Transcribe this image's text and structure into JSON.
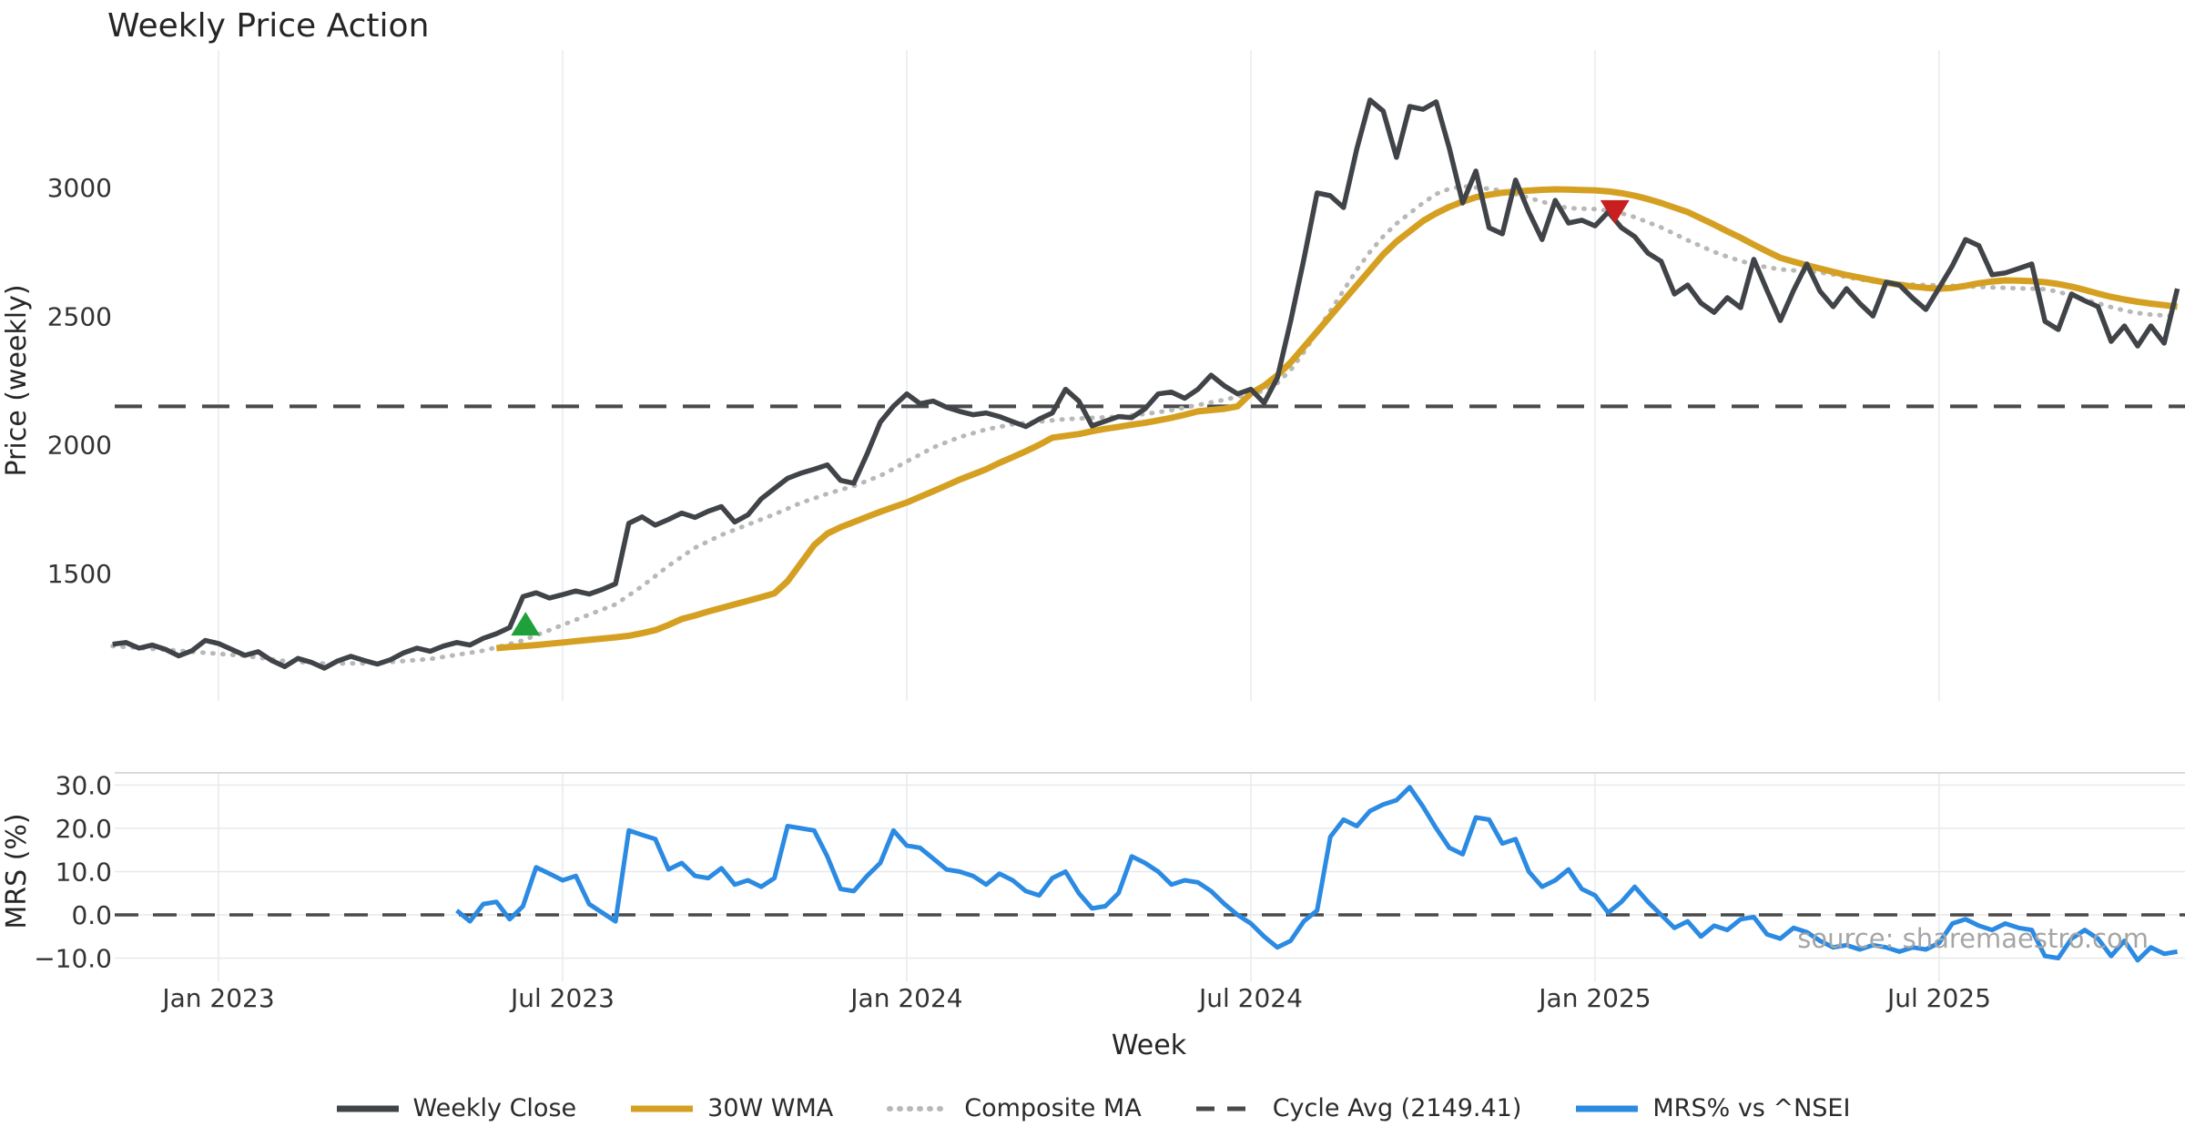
{
  "title": "Weekly Price Action",
  "watermark": "source: sharemaestro.com",
  "colors": {
    "weekly_close": "#404347",
    "wma30": "#d5a021",
    "composite_ma": "#b8b8b8",
    "cycle_avg": "#4a4a4a",
    "mrs": "#2b8ae2",
    "buy_marker": "#1fa03a",
    "sell_marker": "#c81e1e",
    "gridline_v": "#edeff3",
    "gridline_h": "#e9e9e9",
    "spine": "#d9d9d9",
    "tick_text": "#333333"
  },
  "legend": {
    "items": [
      {
        "label": "Weekly Close",
        "color": "#404347",
        "style": "solid"
      },
      {
        "label": "30W WMA",
        "color": "#d5a021",
        "style": "solid"
      },
      {
        "label": "Composite MA",
        "color": "#b8b8b8",
        "style": "dotted"
      },
      {
        "label": "Cycle Avg (2149.41)",
        "color": "#4a4a4a",
        "style": "dashed"
      },
      {
        "label": "MRS% vs ^NSEI",
        "color": "#2b8ae2",
        "style": "solid"
      }
    ]
  },
  "chart_data": [
    {
      "panel": "price",
      "type": "line",
      "title": "Weekly Price Action",
      "ylabel": "Price (weekly)",
      "x_unit": "week_index_from_first_point",
      "ylim": [
        1050,
        3450
      ],
      "grid": "vertical-only",
      "yticks": [
        {
          "v": 3000,
          "label": "3000"
        },
        {
          "v": 2500,
          "label": "2500"
        },
        {
          "v": 2000,
          "label": "2000"
        },
        {
          "v": 1500,
          "label": "1500"
        }
      ],
      "xticks": [
        {
          "week": 8,
          "label": "Jan 2023"
        },
        {
          "week": 34,
          "label": "Jul 2023"
        },
        {
          "week": 60,
          "label": "Jan 2024"
        },
        {
          "week": 86,
          "label": "Jul 2024"
        },
        {
          "week": 112,
          "label": "Jan 2025"
        },
        {
          "week": 138,
          "label": "Jul 2025"
        }
      ],
      "cycle_avg_value": 2149.41,
      "series": [
        {
          "name": "Weekly Close",
          "style": "solid",
          "start_week": 0,
          "values": [
            1225,
            1232,
            1210,
            1222,
            1205,
            1180,
            1200,
            1240,
            1228,
            1205,
            1182,
            1196,
            1162,
            1138,
            1170,
            1155,
            1132,
            1160,
            1178,
            1162,
            1148,
            1165,
            1192,
            1210,
            1198,
            1218,
            1232,
            1222,
            1248,
            1266,
            1290,
            1410,
            1425,
            1405,
            1418,
            1432,
            1420,
            1438,
            1460,
            1695,
            1720,
            1688,
            1710,
            1735,
            1718,
            1742,
            1760,
            1700,
            1728,
            1790,
            1830,
            1870,
            1890,
            1905,
            1922,
            1862,
            1851,
            1964,
            2088,
            2150,
            2198,
            2160,
            2170,
            2146,
            2130,
            2117,
            2124,
            2110,
            2090,
            2071,
            2100,
            2124,
            2216,
            2170,
            2074,
            2092,
            2110,
            2106,
            2140,
            2198,
            2205,
            2181,
            2216,
            2271,
            2229,
            2198,
            2216,
            2163,
            2260,
            2480,
            2720,
            2979,
            2968,
            2922,
            3150,
            3340,
            3297,
            3117,
            3315,
            3304,
            3333,
            3152,
            2940,
            3064,
            2844,
            2820,
            3029,
            2905,
            2798,
            2950,
            2862,
            2873,
            2851,
            2905,
            2844,
            2809,
            2745,
            2713,
            2586,
            2621,
            2551,
            2515,
            2572,
            2533,
            2721,
            2600,
            2483,
            2600,
            2703,
            2597,
            2537,
            2607,
            2550,
            2501,
            2632,
            2621,
            2570,
            2526,
            2610,
            2696,
            2798,
            2774,
            2661,
            2668,
            2685,
            2703,
            2480,
            2448,
            2586,
            2560,
            2537,
            2402,
            2462,
            2384,
            2462,
            2395,
            2607
          ]
        },
        {
          "name": "30W WMA",
          "style": "solid",
          "start_week": 29,
          "values": [
            1210,
            1214,
            1218,
            1222,
            1227,
            1232,
            1237,
            1242,
            1247,
            1252,
            1258,
            1268,
            1280,
            1300,
            1323,
            1337,
            1352,
            1366,
            1380,
            1394,
            1408,
            1423,
            1470,
            1540,
            1610,
            1655,
            1680,
            1700,
            1720,
            1740,
            1758,
            1776,
            1798,
            1820,
            1842,
            1865,
            1885,
            1905,
            1930,
            1952,
            1975,
            2000,
            2028,
            2035,
            2042,
            2053,
            2062,
            2070,
            2078,
            2086,
            2095,
            2105,
            2117,
            2130,
            2135,
            2140,
            2150,
            2200,
            2230,
            2270,
            2320,
            2380,
            2440,
            2500,
            2560,
            2620,
            2680,
            2740,
            2790,
            2830,
            2870,
            2900,
            2925,
            2945,
            2962,
            2972,
            2980,
            2984,
            2988,
            2991,
            2993,
            2992,
            2990,
            2989,
            2985,
            2978,
            2968,
            2955,
            2940,
            2922,
            2905,
            2880,
            2856,
            2830,
            2805,
            2778,
            2752,
            2727,
            2712,
            2698,
            2685,
            2672,
            2660,
            2650,
            2640,
            2630,
            2622,
            2615,
            2610,
            2607,
            2610,
            2618,
            2628,
            2635,
            2639,
            2638,
            2636,
            2632,
            2625,
            2615,
            2602,
            2588,
            2575,
            2565,
            2556,
            2549,
            2543,
            2537
          ]
        },
        {
          "name": "Composite MA",
          "style": "dotted",
          "start_week": 0,
          "values": [
            1218,
            1215,
            1211,
            1207,
            1204,
            1200,
            1196,
            1192,
            1188,
            1184,
            1180,
            1173,
            1167,
            1160,
            1157,
            1153,
            1150,
            1150,
            1151,
            1151,
            1152,
            1156,
            1160,
            1164,
            1168,
            1176,
            1184,
            1192,
            1200,
            1213,
            1226,
            1240,
            1260,
            1280,
            1300,
            1320,
            1340,
            1360,
            1380,
            1415,
            1450,
            1490,
            1530,
            1565,
            1600,
            1625,
            1650,
            1670,
            1690,
            1710,
            1730,
            1752,
            1775,
            1792,
            1810,
            1825,
            1840,
            1860,
            1880,
            1907,
            1935,
            1962,
            1990,
            2010,
            2030,
            2045,
            2060,
            2070,
            2080,
            2085,
            2090,
            2095,
            2100,
            2102,
            2105,
            2107,
            2110,
            2115,
            2120,
            2127,
            2135,
            2145,
            2155,
            2165,
            2175,
            2187,
            2200,
            2210,
            2240,
            2290,
            2360,
            2440,
            2520,
            2600,
            2680,
            2750,
            2810,
            2860,
            2900,
            2940,
            2975,
            2995,
            3005,
            3000,
            2995,
            2988,
            2975,
            2960,
            2945,
            2930,
            2920,
            2918,
            2916,
            2910,
            2900,
            2885,
            2865,
            2845,
            2820,
            2795,
            2772,
            2750,
            2731,
            2715,
            2700,
            2690,
            2682,
            2678,
            2675,
            2670,
            2662,
            2652,
            2643,
            2635,
            2630,
            2626,
            2623,
            2621,
            2620,
            2618,
            2616,
            2614,
            2612,
            2610,
            2608,
            2607,
            2605,
            2595,
            2580,
            2565,
            2550,
            2535,
            2522,
            2512,
            2506,
            2503,
            2501
          ]
        },
        {
          "name": "Cycle Avg",
          "style": "dashed",
          "constant": 2149.41
        }
      ],
      "markers": [
        {
          "shape": "triangle-up",
          "semantic": "buy-signal",
          "week": 31.2,
          "value": 1305
        },
        {
          "shape": "triangle-down",
          "semantic": "sell-signal",
          "week": 113.5,
          "value": 2905
        }
      ]
    },
    {
      "panel": "mrs",
      "type": "line",
      "ylabel": "MRS (%)",
      "xlabel": "Week",
      "ylim": [
        -13,
        33
      ],
      "grid": "both",
      "zero_line": 0,
      "yticks": [
        {
          "v": 30,
          "label": "30.0"
        },
        {
          "v": 20,
          "label": "20.0"
        },
        {
          "v": 10,
          "label": "10.0"
        },
        {
          "v": 0,
          "label": "0.0"
        },
        {
          "v": -10,
          "label": "−10.0"
        }
      ],
      "series": [
        {
          "name": "MRS% vs ^NSEI",
          "style": "solid",
          "start_week": 26,
          "values": [
            1.0,
            -1.5,
            2.5,
            3.0,
            -1.0,
            2.0,
            11.0,
            9.5,
            8.0,
            9.0,
            2.5,
            0.5,
            -1.5,
            19.5,
            18.5,
            17.5,
            10.5,
            12.0,
            9.0,
            8.5,
            10.8,
            7.0,
            8.0,
            6.5,
            8.5,
            20.5,
            20.0,
            19.5,
            13.5,
            6.0,
            5.5,
            9.0,
            12.0,
            19.5,
            16.0,
            15.5,
            13.0,
            10.5,
            10.0,
            9.0,
            7.0,
            9.5,
            8.0,
            5.5,
            4.5,
            8.5,
            10.0,
            5.0,
            1.5,
            2.0,
            5.0,
            13.5,
            12.0,
            10.0,
            7.0,
            8.0,
            7.5,
            5.5,
            2.5,
            0.0,
            -2.0,
            -5.0,
            -7.5,
            -6.0,
            -1.5,
            1.0,
            18.0,
            22.0,
            20.5,
            24.0,
            25.5,
            26.5,
            29.5,
            25.0,
            20.0,
            15.5,
            14.0,
            22.5,
            22.0,
            16.5,
            17.5,
            10.0,
            6.5,
            8.0,
            10.5,
            6.0,
            4.5,
            0.5,
            3.0,
            6.5,
            3.0,
            0.0,
            -3.0,
            -1.5,
            -5.0,
            -2.5,
            -3.5,
            -1.0,
            -0.5,
            -4.5,
            -5.5,
            -3.0,
            -4.0,
            -6.0,
            -7.5,
            -7.0,
            -8.0,
            -7.0,
            -7.5,
            -8.5,
            -7.5,
            -8.0,
            -6.5,
            -2.0,
            -1.0,
            -2.5,
            -3.5,
            -2.0,
            -3.0,
            -3.5,
            -9.5,
            -10.0,
            -5.5,
            -3.5,
            -5.5,
            -9.5,
            -6.0,
            -10.5,
            -7.5,
            -9.0,
            -8.5
          ]
        }
      ]
    }
  ]
}
